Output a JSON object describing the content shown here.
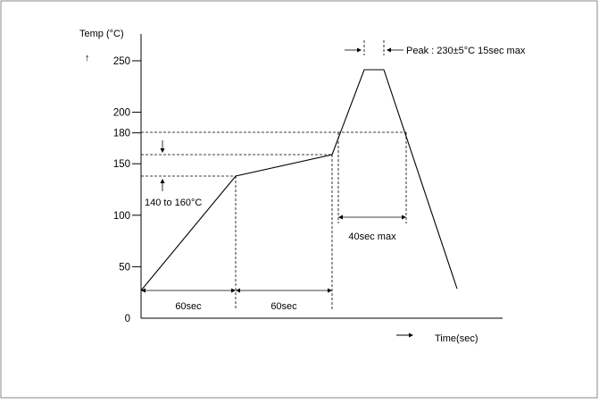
{
  "axes": {
    "y_title": "Temp (°C)",
    "y_arrow": "↑",
    "x_title": "Time(sec)",
    "x_arrow": "→",
    "y_ticks": [
      {
        "value": 0,
        "label": "0"
      },
      {
        "value": 50,
        "label": "50"
      },
      {
        "value": 100,
        "label": "100"
      },
      {
        "value": 150,
        "label": "150"
      },
      {
        "value": 180,
        "label": "180"
      },
      {
        "value": 200,
        "label": "200"
      },
      {
        "value": 250,
        "label": "250"
      }
    ]
  },
  "annotations": {
    "preheat_range": "140 to 160°C",
    "preheat_first": "60sec",
    "preheat_second": "60sec",
    "above_180": "40sec max",
    "peak": "Peak : 230±5°C 15sec max"
  },
  "chart_data": {
    "type": "line",
    "title": "",
    "xlabel": "Time(sec)",
    "ylabel": "Temp (°C)",
    "ylim": [
      0,
      250
    ],
    "y_ticks": [
      0,
      50,
      100,
      150,
      180,
      200,
      250
    ],
    "profile_points": [
      {
        "t": 0,
        "temp": 25
      },
      {
        "t": 60,
        "temp": 140
      },
      {
        "t": 120,
        "temp": 160
      },
      {
        "t": 140,
        "temp": 230
      },
      {
        "t": 155,
        "temp": 230
      },
      {
        "t": 200,
        "temp": 25
      }
    ],
    "reference_lines_temp": [
      140,
      160,
      180
    ],
    "phases": [
      {
        "label": "60sec",
        "duration": 60
      },
      {
        "label": "60sec",
        "duration": 60
      },
      {
        "label": "40sec max",
        "duration": 40
      }
    ]
  },
  "colors": {
    "line": "#000000",
    "frame": "#888888",
    "background": "#ffffff"
  }
}
